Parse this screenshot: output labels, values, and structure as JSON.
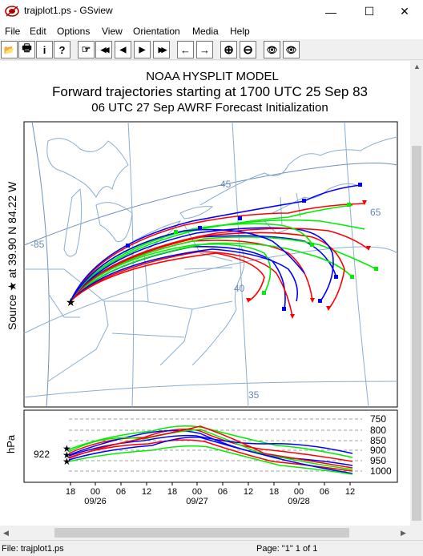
{
  "window": {
    "title": "trajplot1.ps - GSview",
    "minimize_glyph": "—",
    "maximize_glyph": "☐",
    "close_glyph": "✕"
  },
  "menu": [
    "File",
    "Edit",
    "Options",
    "View",
    "Orientation",
    "Media",
    "Help"
  ],
  "toolbar": {
    "buttons": [
      {
        "name": "open-icon",
        "glyph": "📂"
      },
      {
        "name": "print-icon",
        "glyph": "🖶"
      },
      {
        "name": "info-icon",
        "glyph": "i"
      },
      {
        "name": "help-icon",
        "glyph": "?"
      },
      {
        "name": "goto-page-icon",
        "glyph": "☞"
      },
      {
        "name": "first-page-icon",
        "glyph": "◀◀"
      },
      {
        "name": "prev-page-icon",
        "glyph": "◀"
      },
      {
        "name": "next-page-icon",
        "glyph": "▶"
      },
      {
        "name": "last-page-icon",
        "glyph": "▶▶"
      },
      {
        "name": "back-icon",
        "glyph": "←"
      },
      {
        "name": "forward-icon",
        "glyph": "→"
      },
      {
        "name": "zoom-in-icon",
        "glyph": "⊕"
      },
      {
        "name": "zoom-out-icon",
        "glyph": "⊖"
      },
      {
        "name": "view-eye-icon",
        "glyph": "👁"
      },
      {
        "name": "view-eye-full-icon",
        "glyph": "👁"
      }
    ]
  },
  "document": {
    "title1": "NOAA HYSPLIT MODEL",
    "title2": "Forward trajectories starting at 1700 UTC 25 Sep 83",
    "title3": "06 UTC 27 Sep    AWRF  Forecast Initialization",
    "source_label": "Source ★   at    39.90 N    84.22 W",
    "map_labels": {
      "lon_85": "-85",
      "lat_45": "45",
      "lon_65": "65",
      "lat_40": "40",
      "lat_35": "35"
    },
    "height_panel": {
      "unit_label": "hPa",
      "start_level": "922",
      "levels": [
        "750",
        "800",
        "850",
        "900",
        "950",
        "1000"
      ],
      "time_ticks": [
        "18",
        "00",
        "06",
        "12",
        "18",
        "00",
        "06",
        "12",
        "18",
        "00",
        "06",
        "12"
      ],
      "date_labels": [
        "09/26",
        "09/27",
        "09/28"
      ]
    },
    "colors": {
      "red": "#ff0000",
      "blue": "#0000ff",
      "green": "#00ee00",
      "map_lines": "#8aaed0",
      "grid": "#6a8ab0"
    }
  },
  "status": {
    "file": "File: trajplot1.ps",
    "page": "Page: \"1\"  1 of 1"
  }
}
